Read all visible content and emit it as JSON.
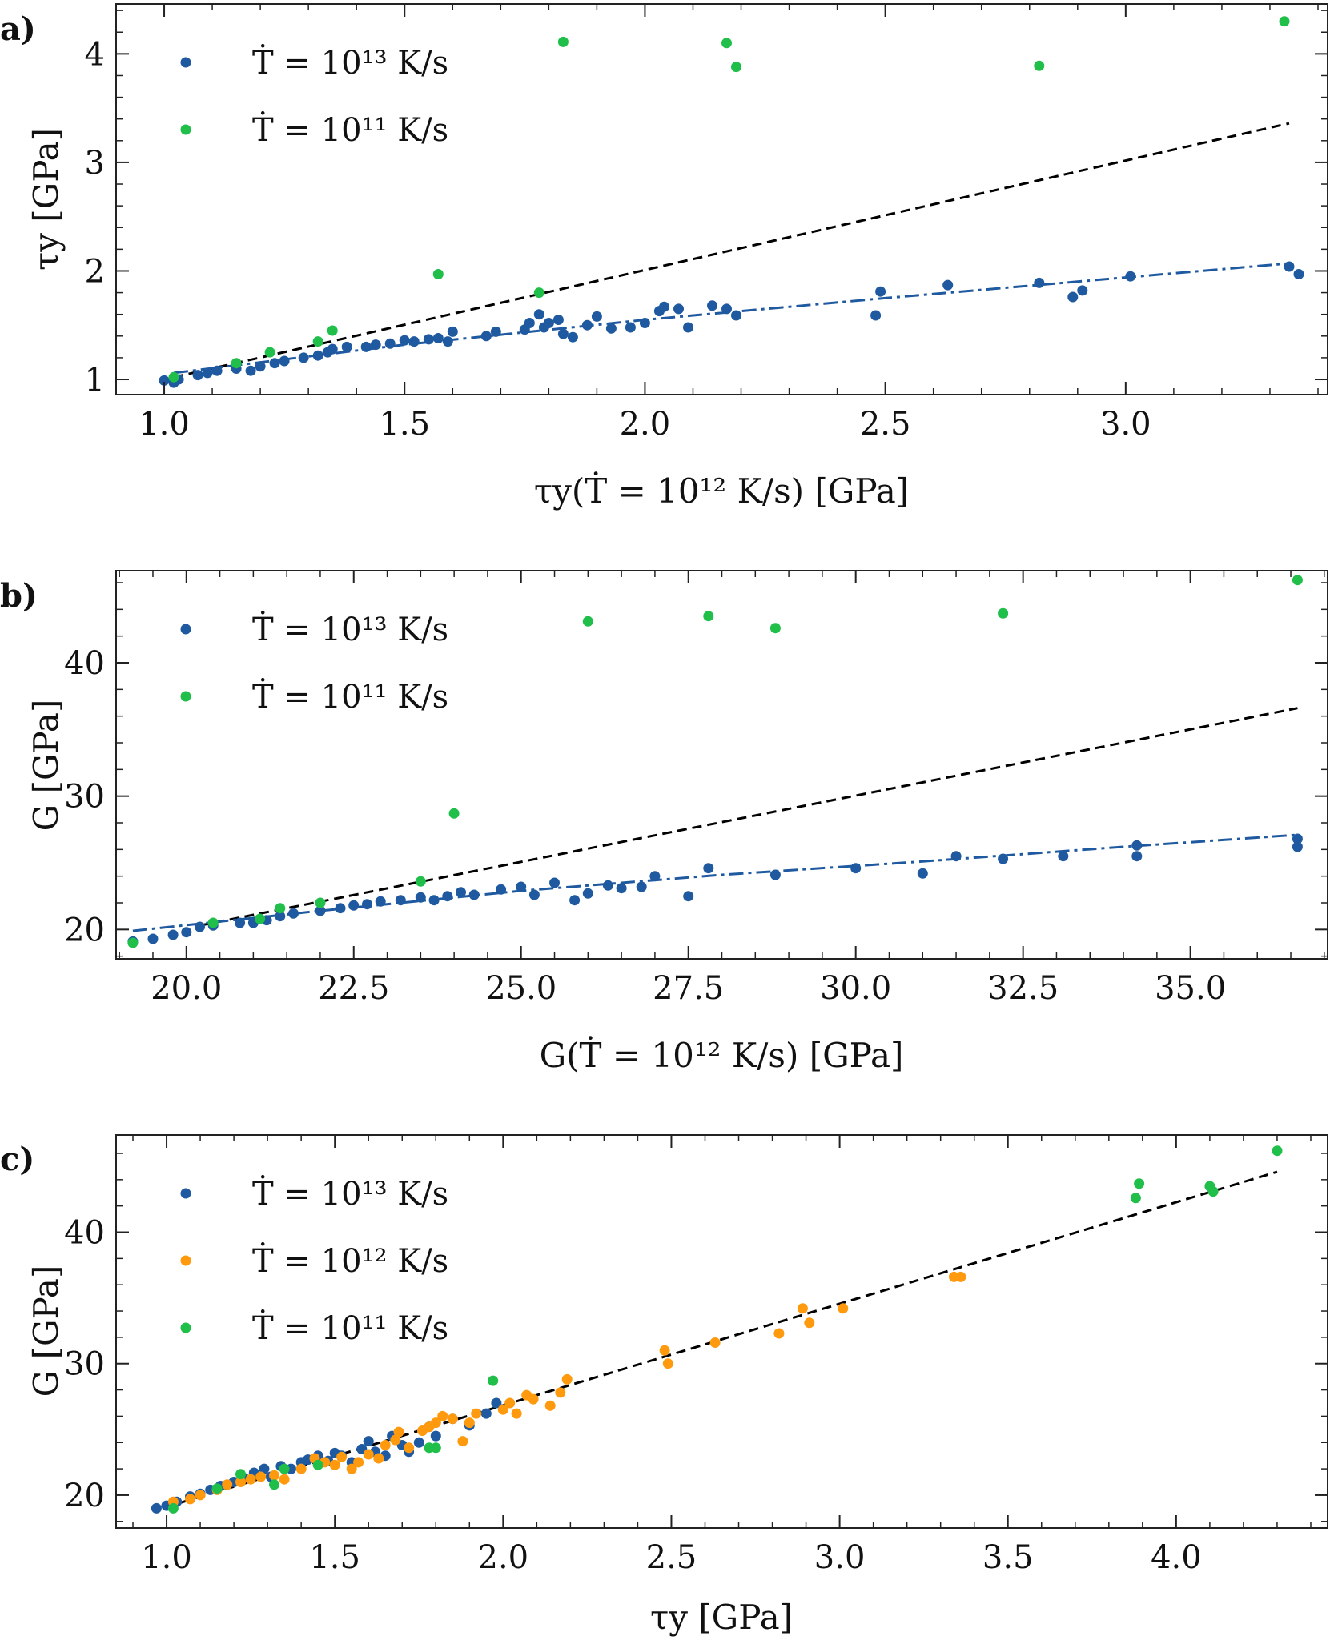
{
  "figure": {
    "colors": {
      "blue": "#1f5aa0",
      "green": "#1fbf4a",
      "orange": "#ff9a0f",
      "black": "#000000"
    },
    "panels_note": "three scatter panels"
  },
  "chart_data": [
    {
      "type": "scatter",
      "panel_label": "a)",
      "xlabel": "τy(Ṫ = 10¹² K/s) [GPa]",
      "ylabel": "τy [GPa]",
      "xlim": [
        0.9,
        3.42
      ],
      "ylim": [
        0.86,
        4.46
      ],
      "xticks": [
        1.0,
        1.5,
        2.0,
        2.5,
        3.0
      ],
      "xtick_labels": [
        "1.0",
        "1.5",
        "2.0",
        "2.5",
        "3.0"
      ],
      "yticks": [
        1,
        2,
        3,
        4
      ],
      "ytick_labels": [
        "1",
        "2",
        "3",
        "4"
      ],
      "legend": [
        "Ṫ = 10¹³ K/s",
        "Ṫ = 10¹¹ K/s"
      ],
      "legend_position": "top-left",
      "series": [
        {
          "name": "Ṫ = 10¹³ K/s",
          "color": "blue",
          "x": [
            1.0,
            1.02,
            1.03,
            1.07,
            1.09,
            1.11,
            1.15,
            1.18,
            1.2,
            1.23,
            1.25,
            1.29,
            1.32,
            1.34,
            1.35,
            1.38,
            1.42,
            1.44,
            1.47,
            1.5,
            1.52,
            1.55,
            1.57,
            1.59,
            1.6,
            1.67,
            1.69,
            1.75,
            1.76,
            1.78,
            1.79,
            1.8,
            1.82,
            1.83,
            1.85,
            1.88,
            1.9,
            1.93,
            1.97,
            2.0,
            2.03,
            2.04,
            2.07,
            2.09,
            2.14,
            2.17,
            2.19,
            2.48,
            2.49,
            2.63,
            2.82,
            2.89,
            2.91,
            3.01,
            3.34,
            3.36
          ],
          "y": [
            0.99,
            0.97,
            1.0,
            1.04,
            1.06,
            1.08,
            1.1,
            1.08,
            1.12,
            1.15,
            1.17,
            1.2,
            1.22,
            1.25,
            1.28,
            1.3,
            1.3,
            1.32,
            1.33,
            1.36,
            1.35,
            1.37,
            1.38,
            1.35,
            1.44,
            1.4,
            1.44,
            1.46,
            1.52,
            1.6,
            1.48,
            1.52,
            1.55,
            1.42,
            1.39,
            1.5,
            1.58,
            1.47,
            1.48,
            1.52,
            1.63,
            1.67,
            1.65,
            1.48,
            1.68,
            1.65,
            1.59,
            1.59,
            1.81,
            1.87,
            1.89,
            1.76,
            1.82,
            1.95,
            2.04,
            1.97
          ]
        },
        {
          "name": "Ṫ = 10¹¹ K/s",
          "color": "green",
          "x": [
            1.02,
            1.15,
            1.22,
            1.32,
            1.35,
            1.57,
            1.78,
            1.83,
            2.17,
            2.19,
            2.82,
            3.33
          ],
          "y": [
            1.02,
            1.15,
            1.25,
            1.35,
            1.45,
            1.97,
            1.8,
            4.11,
            4.1,
            3.88,
            3.89,
            4.3
          ]
        }
      ],
      "lines": [
        {
          "name": "identity",
          "style": "dashed",
          "color": "black",
          "x": [
            1.02,
            3.34
          ],
          "y": [
            1.02,
            3.36
          ]
        },
        {
          "name": "fit",
          "style": "dashdot",
          "color": "blue",
          "x": [
            1.02,
            1.5,
            2.0,
            2.5,
            3.0,
            3.34
          ],
          "y": [
            1.06,
            1.32,
            1.55,
            1.75,
            1.94,
            2.07
          ]
        }
      ]
    },
    {
      "type": "scatter",
      "panel_label": "b)",
      "xlabel": "G(Ṫ = 10¹² K/s) [GPa]",
      "ylabel": "G [GPa]",
      "xlim": [
        18.95,
        37.05
      ],
      "ylim": [
        17.8,
        46.9
      ],
      "xticks": [
        20.0,
        22.5,
        25.0,
        27.5,
        30.0,
        32.5,
        35.0
      ],
      "xtick_labels": [
        "20.0",
        "22.5",
        "25.0",
        "27.5",
        "30.0",
        "32.5",
        "35.0"
      ],
      "yticks": [
        20,
        30,
        40
      ],
      "ytick_labels": [
        "20",
        "30",
        "40"
      ],
      "legend": [
        "Ṫ = 10¹³ K/s",
        "Ṫ = 10¹¹ K/s"
      ],
      "legend_position": "top-left",
      "series": [
        {
          "name": "Ṫ = 10¹³ K/s",
          "color": "blue",
          "x": [
            19.2,
            19.5,
            19.8,
            20.0,
            20.2,
            20.4,
            20.8,
            21.0,
            21.2,
            21.4,
            21.6,
            22.0,
            22.3,
            22.5,
            22.7,
            22.9,
            23.2,
            23.5,
            23.7,
            23.9,
            24.1,
            24.3,
            24.7,
            25.0,
            25.2,
            25.5,
            25.8,
            26.0,
            26.3,
            26.5,
            26.8,
            27.0,
            27.5,
            27.8,
            28.8,
            30.0,
            31.0,
            31.5,
            32.2,
            33.1,
            34.2,
            34.2,
            36.6,
            36.6
          ],
          "y": [
            19.1,
            19.3,
            19.6,
            19.8,
            20.2,
            20.3,
            20.5,
            20.5,
            20.7,
            21.0,
            21.2,
            21.4,
            21.6,
            21.8,
            21.9,
            22.1,
            22.2,
            22.4,
            22.2,
            22.5,
            22.8,
            22.6,
            23.0,
            23.2,
            22.6,
            23.5,
            22.2,
            22.7,
            23.3,
            23.1,
            23.2,
            24.0,
            22.5,
            24.6,
            24.1,
            24.6,
            24.2,
            25.5,
            25.3,
            25.5,
            26.3,
            25.5,
            26.2,
            26.8
          ]
        },
        {
          "name": "Ṫ = 10¹¹ K/s",
          "color": "green",
          "x": [
            19.2,
            20.4,
            21.1,
            21.4,
            22.0,
            23.5,
            24.0,
            26.0,
            27.8,
            28.8,
            32.2,
            36.6
          ],
          "y": [
            19.0,
            20.5,
            20.8,
            21.6,
            22.0,
            23.6,
            28.7,
            43.1,
            43.5,
            42.6,
            43.7,
            46.2
          ]
        }
      ],
      "lines": [
        {
          "name": "identity",
          "style": "dashed",
          "color": "black",
          "x": [
            20.2,
            36.6
          ],
          "y": [
            20.3,
            36.6
          ]
        },
        {
          "name": "fit",
          "style": "dashdot",
          "color": "blue",
          "x": [
            19.2,
            22.0,
            25.0,
            28.0,
            31.0,
            34.0,
            36.6
          ],
          "y": [
            19.9,
            21.4,
            22.9,
            24.1,
            25.1,
            26.2,
            27.1
          ]
        }
      ]
    },
    {
      "type": "scatter",
      "panel_label": "c)",
      "xlabel": "τy [GPa]",
      "ylabel": "G [GPa]",
      "xlim": [
        0.85,
        4.45
      ],
      "ylim": [
        17.5,
        47.4
      ],
      "xticks": [
        1.0,
        1.5,
        2.0,
        2.5,
        3.0,
        3.5,
        4.0
      ],
      "xtick_labels": [
        "1.0",
        "1.5",
        "2.0",
        "2.5",
        "3.0",
        "3.5",
        "4.0"
      ],
      "yticks": [
        20,
        30,
        40
      ],
      "ytick_labels": [
        "20",
        "30",
        "40"
      ],
      "legend": [
        "Ṫ = 10¹³ K/s",
        "Ṫ = 10¹² K/s",
        "Ṫ = 10¹¹ K/s"
      ],
      "legend_position": "top-left",
      "series": [
        {
          "name": "Ṫ = 10¹³ K/s",
          "color": "blue",
          "x": [
            0.97,
            1.0,
            1.03,
            1.07,
            1.1,
            1.13,
            1.16,
            1.2,
            1.23,
            1.26,
            1.29,
            1.31,
            1.34,
            1.37,
            1.4,
            1.42,
            1.45,
            1.48,
            1.5,
            1.52,
            1.55,
            1.58,
            1.6,
            1.62,
            1.65,
            1.67,
            1.7,
            1.72,
            1.75,
            1.78,
            1.8,
            1.85,
            1.9,
            1.95,
            1.98
          ],
          "y": [
            19.0,
            19.2,
            19.5,
            19.9,
            20.1,
            20.4,
            20.7,
            21.0,
            21.3,
            21.7,
            22.0,
            21.4,
            22.2,
            22.0,
            22.5,
            22.7,
            23.0,
            22.6,
            23.2,
            23.0,
            22.5,
            23.5,
            24.1,
            23.3,
            23.0,
            24.5,
            23.8,
            23.3,
            24.0,
            25.2,
            24.5,
            25.8,
            25.3,
            26.2,
            27.0
          ]
        },
        {
          "name": "Ṫ = 10¹² K/s",
          "color": "orange",
          "x": [
            1.02,
            1.07,
            1.1,
            1.15,
            1.18,
            1.22,
            1.25,
            1.28,
            1.32,
            1.35,
            1.4,
            1.44,
            1.47,
            1.5,
            1.52,
            1.55,
            1.57,
            1.6,
            1.63,
            1.65,
            1.68,
            1.69,
            1.72,
            1.76,
            1.78,
            1.8,
            1.82,
            1.85,
            1.88,
            1.9,
            1.92,
            2.0,
            2.02,
            2.04,
            2.07,
            2.09,
            2.14,
            2.17,
            2.19,
            2.48,
            2.49,
            2.63,
            2.82,
            2.89,
            2.91,
            3.01,
            3.34,
            3.36
          ],
          "y": [
            19.5,
            19.7,
            20.0,
            20.4,
            20.8,
            21.0,
            21.2,
            21.4,
            21.5,
            21.2,
            22.0,
            22.8,
            22.5,
            22.3,
            22.9,
            22.0,
            22.5,
            23.1,
            22.8,
            23.8,
            24.2,
            24.8,
            23.6,
            24.9,
            25.2,
            25.5,
            26.0,
            25.8,
            24.1,
            25.5,
            26.2,
            26.5,
            27.0,
            26.2,
            27.6,
            27.3,
            26.8,
            27.8,
            28.8,
            31.0,
            30.0,
            31.6,
            32.3,
            34.2,
            33.1,
            34.2,
            36.6,
            36.6
          ]
        },
        {
          "name": "Ṫ = 10¹¹ K/s",
          "color": "green",
          "x": [
            1.02,
            1.15,
            1.22,
            1.32,
            1.35,
            1.45,
            1.78,
            1.8,
            1.97,
            3.88,
            3.89,
            4.1,
            4.11,
            4.3
          ],
          "y": [
            19.0,
            20.5,
            21.6,
            20.8,
            22.0,
            22.3,
            23.6,
            23.6,
            28.7,
            42.6,
            43.7,
            43.5,
            43.1,
            46.2
          ]
        }
      ],
      "lines": [
        {
          "name": "linear fit",
          "style": "dashed",
          "color": "black",
          "x": [
            1.0,
            4.3
          ],
          "y": [
            19.1,
            44.6
          ]
        }
      ]
    }
  ]
}
